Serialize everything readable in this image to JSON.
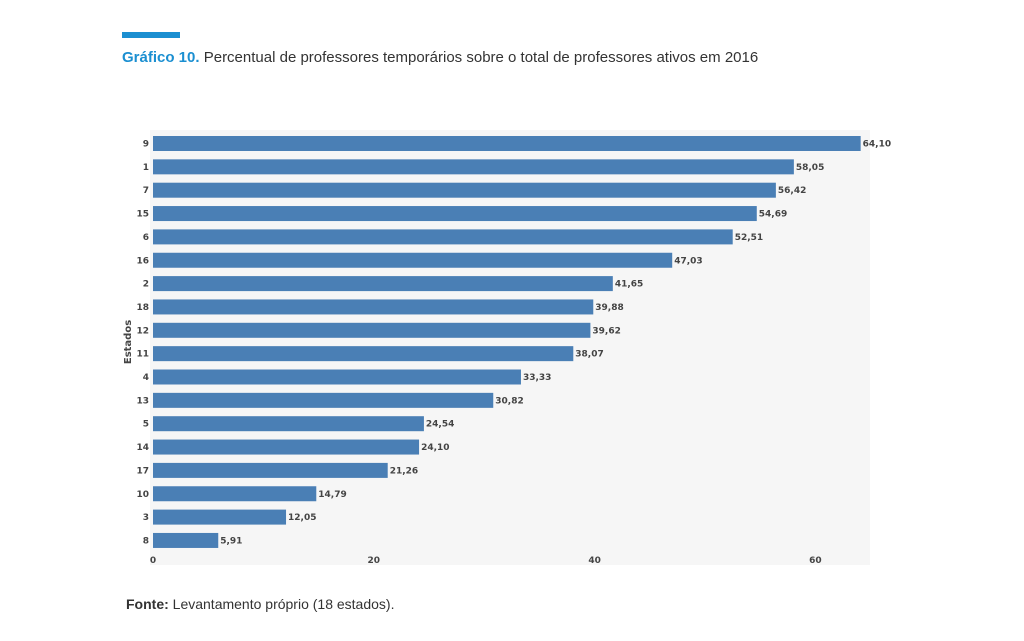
{
  "header": {
    "label": "Gráfico 10.",
    "title": "Percentual de professores temporários sobre o total de professores ativos em 2016",
    "accent_color": "#1b8fd1"
  },
  "source": {
    "label": "Fonte:",
    "text": "Levantamento próprio (18 estados)."
  },
  "chart_data": {
    "type": "bar",
    "orientation": "horizontal",
    "ylabel": "Estados",
    "xlabel": "",
    "xlim": [
      0,
      66
    ],
    "xticks": [
      0,
      20,
      40,
      60
    ],
    "bar_color": "#4a7fb5",
    "categories": [
      "9",
      "1",
      "7",
      "15",
      "6",
      "16",
      "2",
      "18",
      "12",
      "11",
      "4",
      "13",
      "5",
      "14",
      "17",
      "10",
      "3",
      "8"
    ],
    "values": [
      64.1,
      58.05,
      56.42,
      54.69,
      52.51,
      47.03,
      41.65,
      39.88,
      39.62,
      38.07,
      33.33,
      30.82,
      24.54,
      24.1,
      21.26,
      14.79,
      12.05,
      5.91
    ],
    "value_labels": [
      "64,10",
      "58,05",
      "56,42",
      "54,69",
      "52,51",
      "47,03",
      "41,65",
      "39,88",
      "39,62",
      "38,07",
      "33,33",
      "30,82",
      "24,54",
      "24,10",
      "21,26",
      "14,79",
      "12,05",
      "5,91"
    ]
  }
}
